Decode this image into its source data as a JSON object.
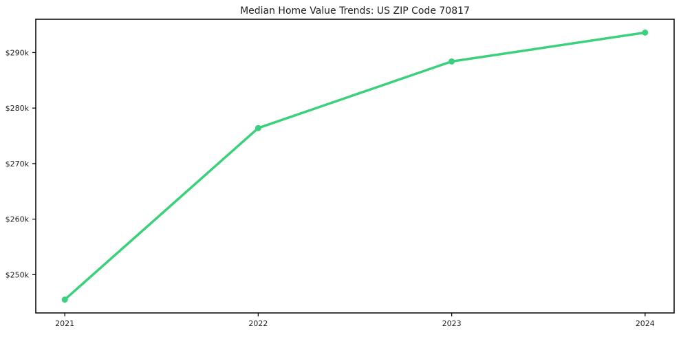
{
  "chart_data": {
    "type": "line",
    "title": "Median Home Value Trends: US ZIP Code 70817",
    "x": [
      2021,
      2022,
      2023,
      2024
    ],
    "xtick_labels": [
      "2021",
      "2022",
      "2023",
      "2024"
    ],
    "series": [
      {
        "name": "Median Home Value",
        "values": [
          245500,
          276400,
          288400,
          293600
        ],
        "color": "#3bd07c",
        "marker": "circle",
        "line_width": 3.5,
        "marker_radius": 4.5
      }
    ],
    "xlabel": "",
    "ylabel": "",
    "ylim": [
      243100,
      296000
    ],
    "yticks": [
      250000,
      260000,
      270000,
      280000,
      290000
    ],
    "ytick_labels": [
      "$250k",
      "$260k",
      "$270k",
      "$280k",
      "$290k"
    ],
    "grid": false,
    "legend_position": "none",
    "background_color": "#ffffff",
    "axis_color": "#000000",
    "text_color": "#1c1c1c"
  }
}
